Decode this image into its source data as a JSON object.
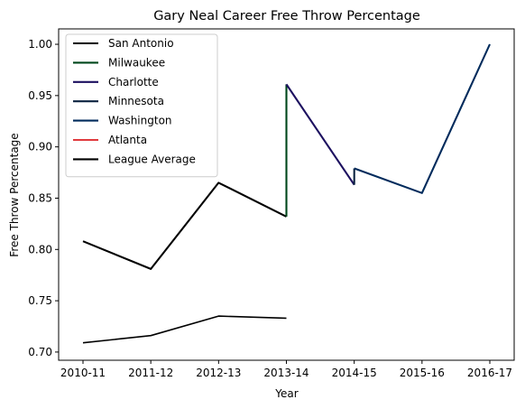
{
  "chart_data": {
    "type": "line",
    "title": "Gary Neal Career Free Throw Percentage",
    "xlabel": "Year",
    "ylabel": "Free Throw Percentage",
    "categories": [
      "2010-11",
      "2011-12",
      "2012-13",
      "2013-14",
      "2014-15",
      "2015-16",
      "2016-17"
    ],
    "ylim": [
      0.692,
      1.015
    ],
    "yticks": [
      0.7,
      0.75,
      0.8,
      0.85,
      0.9,
      0.95,
      1.0
    ],
    "ytick_labels": [
      "0.70",
      "0.75",
      "0.80",
      "0.85",
      "0.90",
      "0.95",
      "1.00"
    ],
    "legend_position": "upper-left",
    "grid": false,
    "series": [
      {
        "name": "San Antonio",
        "color": "#000000",
        "points": [
          [
            0,
            0.808
          ],
          [
            1,
            0.781
          ],
          [
            2,
            0.865
          ],
          [
            3,
            0.832
          ]
        ]
      },
      {
        "name": "Milwaukee",
        "color": "#00471B",
        "points": [
          [
            3,
            0.832
          ],
          [
            3,
            0.961
          ]
        ]
      },
      {
        "name": "Charlotte",
        "color": "#1D1160",
        "points": [
          [
            3,
            0.961
          ],
          [
            4,
            0.863
          ]
        ]
      },
      {
        "name": "Minnesota",
        "color": "#0C2340",
        "points": [
          [
            4,
            0.863
          ],
          [
            4,
            0.879
          ]
        ]
      },
      {
        "name": "Washington",
        "color": "#002B5C",
        "points": [
          [
            4,
            0.879
          ],
          [
            5,
            0.855
          ],
          [
            6,
            1.0
          ]
        ]
      },
      {
        "name": "Atlanta",
        "color": "#E03A3E",
        "points": []
      },
      {
        "name": "League Average",
        "color": "#000000",
        "thin": true,
        "points": [
          [
            0,
            0.709
          ],
          [
            1,
            0.716
          ],
          [
            2,
            0.735
          ],
          [
            3,
            0.733
          ]
        ]
      }
    ]
  }
}
